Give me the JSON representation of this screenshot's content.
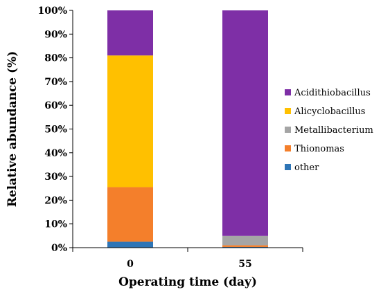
{
  "chart_data": {
    "type": "bar",
    "stacked": true,
    "categories": [
      "0",
      "55"
    ],
    "xlabel": "Operating time (day)",
    "ylabel": "Relative abundance (%)",
    "ylim": [
      0,
      100
    ],
    "yticks": [
      "0%",
      "10%",
      "20%",
      "30%",
      "40%",
      "50%",
      "60%",
      "70%",
      "80%",
      "90%",
      "100%"
    ],
    "grid": false,
    "legend_position": "right",
    "series": [
      {
        "name": "other",
        "color": "#2E75B6",
        "values": [
          2.5,
          0.3
        ]
      },
      {
        "name": "Thionomas",
        "color": "#F47F2B",
        "values": [
          23,
          0.7
        ]
      },
      {
        "name": "Metallibacterium",
        "color": "#A5A5A5",
        "values": [
          0,
          4
        ]
      },
      {
        "name": "Alicyclobacillus",
        "color": "#FFC000",
        "values": [
          55.5,
          0
        ]
      },
      {
        "name": "Acidithiobacillus",
        "color": "#7E2FA6",
        "values": [
          19,
          95
        ]
      }
    ],
    "legend_order": [
      "Acidithiobacillus",
      "Alicyclobacillus",
      "Metallibacterium",
      "Thionomas",
      "other"
    ]
  }
}
